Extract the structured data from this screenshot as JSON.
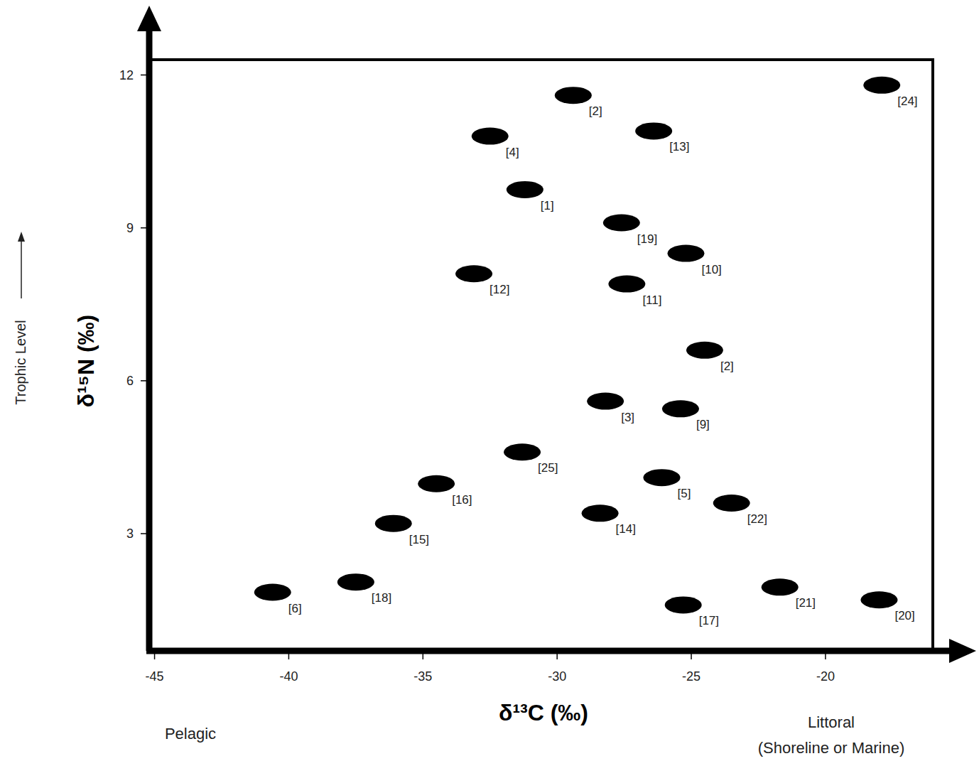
{
  "chart_data": {
    "type": "scatter",
    "x_label": "δ¹³C (‰)",
    "y_label": "δ¹⁵N (‰)",
    "annotations": [
      "Trophic Level",
      "Pelagic",
      "Littoral",
      "(Shoreline or Marine)"
    ],
    "labels": [
      "[2]",
      "[24]",
      "[4]",
      "[13]",
      "[1]",
      "[19]",
      "[10]",
      "[12]",
      "[11]",
      "[2]",
      "[3]",
      "[9]",
      "[25]",
      "[16]",
      "[5]",
      "[22]",
      "[15]",
      "[14]",
      "[6]",
      "[18]",
      "[17]",
      "[21]",
      "[20]"
    ],
    "x": [
      -29.4,
      -17.9,
      -32.5,
      -26.4,
      -31.2,
      -27.6,
      -25.2,
      -33.1,
      -27.4,
      -24.5,
      -28.2,
      -25.4,
      -31.3,
      -34.5,
      -26.1,
      -23.5,
      -36.1,
      -28.4,
      -40.6,
      -37.5,
      -25.3,
      -21.7,
      -18.0
    ],
    "values": [
      11.6,
      11.8,
      10.8,
      10.9,
      9.75,
      9.1,
      8.5,
      8.1,
      7.9,
      6.6,
      5.6,
      5.45,
      4.6,
      3.98,
      4.1,
      3.6,
      3.2,
      3.4,
      1.85,
      2.05,
      1.6,
      1.95,
      1.7
    ],
    "color": "#000000",
    "marker": "ellipse",
    "xlim": [
      -45.2,
      -16
    ],
    "ylim": [
      0.7,
      12.3
    ],
    "xticks": [
      -45,
      -40,
      -35,
      -30,
      -25,
      -20
    ],
    "yticks": [
      3,
      6,
      9,
      12
    ],
    "grid": false
  }
}
